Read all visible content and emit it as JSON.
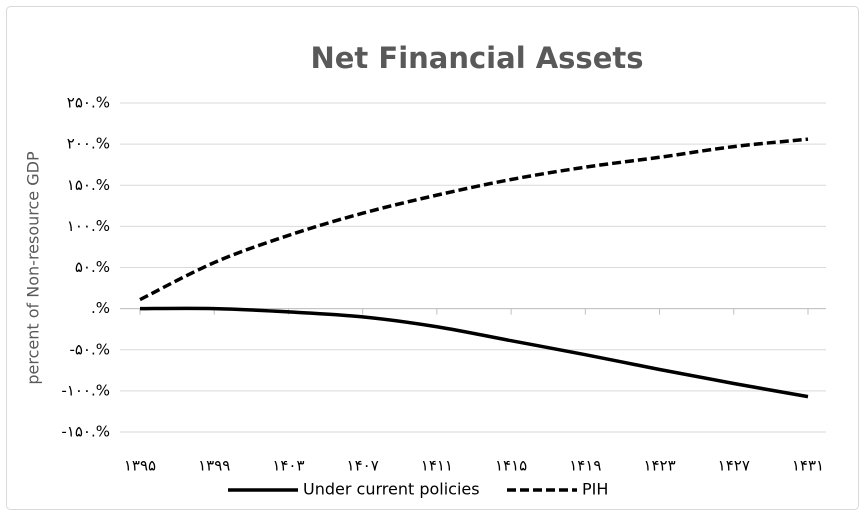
{
  "chart_data": {
    "type": "line",
    "title": "Net Financial Assets",
    "y_label": "percent of Non-resource GDP",
    "categories": [
      "۱۳۹۵",
      "۱۳۹۹",
      "۱۴۰۳",
      "۱۴۰۷",
      "۱۴۱۱",
      "۱۴۱۵",
      "۱۴۱۹",
      "۱۴۲۳",
      "۱۴۲۷",
      "۱۴۳۱"
    ],
    "series": [
      {
        "name": "Under current policies",
        "color": "#000000",
        "dash": "solid",
        "values": [
          0,
          0,
          -4,
          -10,
          -22,
          -39,
          -56,
          -74,
          -91,
          -107
        ]
      },
      {
        "name": "PIH",
        "color": "#000000",
        "dash": "dashed",
        "values": [
          11,
          56,
          89,
          116,
          138,
          157,
          172,
          184,
          197,
          206
        ]
      }
    ],
    "ylim": [
      -150,
      250
    ],
    "yticks": [
      {
        "value": -150,
        "label": "-۱۵۰.%"
      },
      {
        "value": -100,
        "label": "-۱۰۰.%"
      },
      {
        "value": -50,
        "label": "-۵۰.%"
      },
      {
        "value": 0,
        "label": ".%"
      },
      {
        "value": 50,
        "label": "۵۰.%"
      },
      {
        "value": 100,
        "label": "۱۰۰.%"
      },
      {
        "value": 150,
        "label": "۱۵۰.%"
      },
      {
        "value": 200,
        "label": "۲۰۰.%"
      },
      {
        "value": 250,
        "label": "۲۵۰.%"
      }
    ],
    "grid": true,
    "legend": "bottom"
  }
}
